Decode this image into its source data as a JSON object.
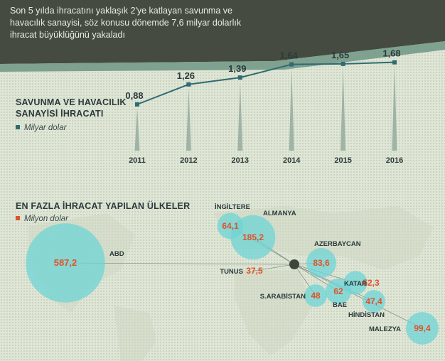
{
  "header": {
    "subtitle": "Son 5 yılda ihracatını yaklaşık 2'ye katlayan savunma ve havacılık sanayisi, söz konusu dönemde 7,6 milyar dolarlık ihracat büyüklüğünü yakaladı"
  },
  "colors": {
    "header_dark": "#454b40",
    "header_band": "#7fa18f",
    "teal": "#2f6b72",
    "bubble": "#6fd4d6",
    "orange": "#e0522a",
    "text_dark": "#2c3a3c"
  },
  "chart_data": [
    {
      "type": "line",
      "title": "SAVUNMA VE HAVACILIK SANAYİSİ İHRACATI",
      "unit_label": "Milyar dolar",
      "categories": [
        "2011",
        "2012",
        "2013",
        "2014",
        "2015",
        "2016"
      ],
      "values": [
        0.88,
        1.26,
        1.39,
        1.64,
        1.65,
        1.68
      ],
      "labels": [
        "0,88",
        "1,26",
        "1,39",
        "1,64",
        "1,65",
        "1,68"
      ]
    },
    {
      "type": "bubble-map",
      "title": "EN FAZLA İHRACAT YAPILAN ÜLKELER",
      "unit_label": "Milyon dolar",
      "points": [
        {
          "country": "ABD",
          "value": 587.2,
          "label": "587,2"
        },
        {
          "country": "ALMANYA",
          "value": 185.2,
          "label": "185,2"
        },
        {
          "country": "AZERBAYCAN",
          "value": 83.6,
          "label": "83,6"
        },
        {
          "country": "İNGİLTERE",
          "value": 64.1,
          "label": "64,1"
        },
        {
          "country": "S.ARABİSTAN",
          "value": 48,
          "label": "48"
        },
        {
          "country": "BAE",
          "value": 62,
          "label": "62"
        },
        {
          "country": "KATAR",
          "value": 52.3,
          "label": "52,3"
        },
        {
          "country": "HİNDİSTAN",
          "value": 47.4,
          "label": "47,4"
        },
        {
          "country": "MALEZYA",
          "value": 99.4,
          "label": "99,4"
        },
        {
          "country": "TUNUS",
          "value": 37.5,
          "label": "37,5"
        }
      ]
    }
  ]
}
